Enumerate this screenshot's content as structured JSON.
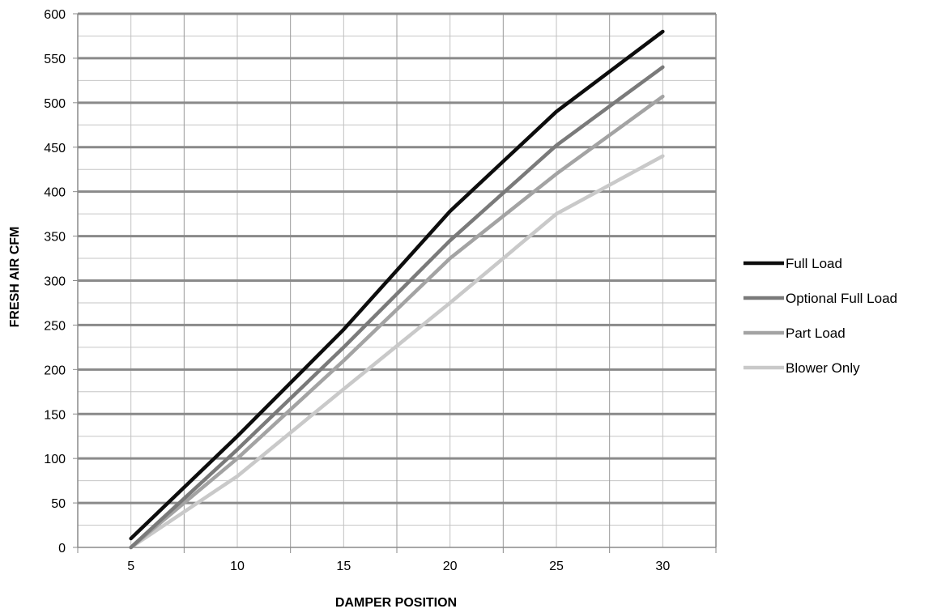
{
  "chart_data": {
    "type": "line",
    "xlabel": "DAMPER POSITION",
    "ylabel": "FRESH AIR CFM",
    "x": [
      5,
      10,
      15,
      20,
      25,
      30
    ],
    "xticks": [
      5,
      10,
      15,
      20,
      25,
      30
    ],
    "xlim": [
      2.5,
      32.5
    ],
    "xminor_step": 2.5,
    "ylim": [
      0,
      600
    ],
    "yticks": [
      0,
      50,
      100,
      150,
      200,
      250,
      300,
      350,
      400,
      450,
      500,
      550,
      600
    ],
    "yminor_step": 25,
    "grid": true,
    "legend_position": "right",
    "series": [
      {
        "name": "Full Load",
        "color": "#0d0d0d",
        "values": [
          10,
          125,
          245,
          378,
          490,
          580
        ]
      },
      {
        "name": "Optional Full Load",
        "color": "#7a7a7a",
        "values": [
          0,
          110,
          225,
          345,
          452,
          540
        ]
      },
      {
        "name": "Part Load",
        "color": "#a3a3a3",
        "values": [
          0,
          100,
          210,
          325,
          420,
          507
        ]
      },
      {
        "name": "Blower Only",
        "color": "#c9c9c9",
        "values": [
          0,
          80,
          178,
          275,
          375,
          440
        ]
      }
    ]
  }
}
